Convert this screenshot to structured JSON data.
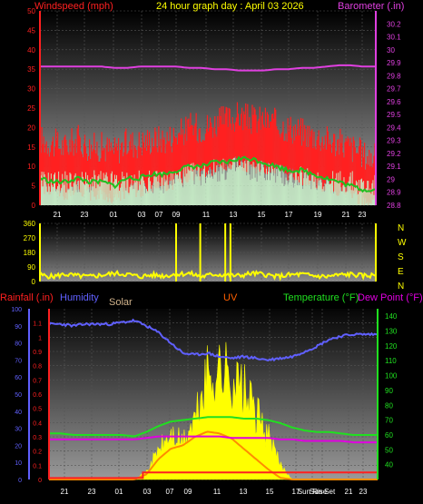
{
  "chart_data": [
    {
      "type": "line",
      "title": "24 hour graph day : April 03 2026",
      "left_axis_label": "Windspeed (mph)",
      "right_axis_label": "Barometer (.in)",
      "left_ylim": [
        0,
        50
      ],
      "left_ticks": [
        "0",
        "5",
        "10",
        "15",
        "20",
        "25",
        "30",
        "35",
        "40",
        "45",
        "50"
      ],
      "right_ylim": [
        28.8,
        30.3
      ],
      "right_ticks": [
        "28.8",
        "28.9",
        "29",
        "29.1",
        "29.2",
        "29.3",
        "29.4",
        "29.5",
        "29.6",
        "29.7",
        "29.8",
        "29.9",
        "30",
        "30.1",
        "30.2"
      ],
      "x_ticks": [
        "21",
        "23",
        "01",
        "03",
        "07",
        "09",
        "11",
        "13",
        "15",
        "17",
        "19",
        "21",
        "23"
      ],
      "series": [
        {
          "name": "Windspeed (mph)",
          "color": "#ff2020",
          "values": [
            12,
            11,
            10,
            12,
            10,
            10,
            9,
            11,
            11,
            12,
            12,
            13,
            15,
            15,
            16,
            17,
            18,
            17,
            17,
            16,
            15,
            14,
            13,
            12,
            11,
            10,
            8,
            7
          ]
        },
        {
          "name": "Barometer (.in)",
          "color": "#e040e0",
          "values": [
            29.87,
            29.87,
            29.87,
            29.87,
            29.87,
            29.87,
            29.86,
            29.86,
            29.87,
            29.87,
            29.87,
            29.87,
            29.86,
            29.86,
            29.85,
            29.85,
            29.84,
            29.84,
            29.84,
            29.85,
            29.85,
            29.86,
            29.86,
            29.87,
            29.88,
            29.88,
            29.87,
            29.87
          ]
        },
        {
          "color": "#20c020",
          "values": [
            7,
            6,
            6,
            7,
            6,
            6,
            5,
            7,
            7,
            8,
            8,
            9,
            10,
            10,
            11,
            11,
            12,
            12,
            11,
            10,
            9,
            9,
            8,
            7,
            6,
            5,
            4,
            4
          ]
        },
        {
          "color": "#c8f0c8",
          "values": [
            3,
            3,
            3,
            3,
            3,
            3,
            3,
            3,
            3,
            3,
            3,
            4,
            5,
            5,
            6,
            6,
            7,
            6,
            6,
            5,
            4,
            4,
            4,
            3,
            3,
            3,
            2,
            2
          ]
        }
      ]
    },
    {
      "type": "line",
      "ylim": [
        0,
        360
      ],
      "left_ticks": [
        "0",
        "90",
        "180",
        "270",
        "360"
      ],
      "right_ticks": [
        "N",
        "W",
        "S",
        "E",
        "N"
      ],
      "series": [
        {
          "color": "#ffff00",
          "values": [
            40,
            30,
            45,
            35,
            30,
            40,
            50,
            45,
            30,
            40,
            35,
            45,
            50,
            30,
            45,
            40,
            35,
            50,
            45,
            30,
            40,
            45,
            35,
            30,
            40,
            45,
            35,
            40
          ]
        }
      ],
      "spikes_hours": [
        9.0,
        11.8,
        14.7,
        15.3
      ]
    },
    {
      "type": "line",
      "labels": {
        "rainfall": "Rainfall (.in)",
        "humidity": "Humidity",
        "solar": "Solar",
        "uv": "UV",
        "temperature": "Temperature (°F)",
        "dew_point": "Dew Point (°F)"
      },
      "left_ylim": [
        0,
        100
      ],
      "left_ticks": [
        "0",
        "10",
        "20",
        "30",
        "40",
        "50",
        "60",
        "70",
        "80",
        "90",
        "100"
      ],
      "rain_ylim": [
        0,
        1.2
      ],
      "rain_ticks": [
        "0",
        "0.1",
        "0.2",
        "0.3",
        "0.4",
        "0.5",
        "0.6",
        "0.7",
        "0.8",
        "0.9",
        "1",
        "1.1"
      ],
      "right_ylim": [
        30,
        145
      ],
      "right_ticks": [
        "40",
        "50",
        "60",
        "70",
        "80",
        "90",
        "100",
        "110",
        "120",
        "130",
        "140"
      ],
      "x_ticks": [
        "21",
        "23",
        "01",
        "03",
        "07",
        "09",
        "11",
        "13",
        "15",
        "17",
        "Sun Rise",
        "Sun Set",
        "21",
        "23"
      ],
      "series": [
        {
          "name": "Humidity",
          "color": "#6060ff",
          "values": [
            91,
            91,
            90,
            91,
            91,
            91,
            92,
            93,
            90,
            86,
            80,
            74,
            73,
            74,
            72,
            71,
            72,
            71,
            70,
            71,
            72,
            75,
            78,
            82,
            84,
            85,
            85,
            85
          ]
        },
        {
          "name": "Temperature (°F)",
          "color": "#20e020",
          "values": [
            61,
            61,
            60,
            60,
            60,
            60,
            60,
            59,
            62,
            66,
            69,
            70,
            71,
            72,
            72,
            72,
            71,
            71,
            70,
            68,
            65,
            63,
            62,
            62,
            61,
            60,
            60,
            60
          ]
        },
        {
          "name": "Dew Point (°F)",
          "color": "#e000e0",
          "values": [
            57,
            57,
            57,
            57,
            57,
            57,
            57,
            57,
            58,
            59,
            59,
            59,
            59,
            59,
            59,
            58,
            58,
            58,
            58,
            57,
            57,
            56,
            56,
            56,
            56,
            55,
            55,
            55
          ]
        },
        {
          "name": "Solar",
          "color": "#ffff00",
          "values": [
            0,
            0,
            0,
            0,
            0,
            0,
            0,
            0,
            5,
            20,
            30,
            25,
            40,
            70,
            75,
            70,
            60,
            45,
            30,
            10,
            0,
            0,
            0,
            0,
            0,
            0,
            0,
            0
          ]
        },
        {
          "name": "UV",
          "color": "#ff8c00",
          "values": [
            0,
            0,
            0,
            0,
            0,
            0,
            0,
            0,
            3,
            12,
            18,
            20,
            25,
            28,
            27,
            24,
            18,
            12,
            6,
            1,
            0,
            0,
            0,
            0,
            0,
            0,
            0,
            0
          ]
        },
        {
          "name": "Rainfall (.in)",
          "color": "#ff2020",
          "values": [
            0.01,
            0.01,
            0.01,
            0.01,
            0.01,
            0.01,
            0.01,
            0.01,
            0.05,
            0.05,
            0.05,
            0.05,
            0.05,
            0.05,
            0.05,
            0.05,
            0.05,
            0.05,
            0.05,
            0.05,
            0.05,
            0.05,
            0.05,
            0.05,
            0.05,
            0.05,
            0.05,
            0.05
          ]
        }
      ]
    }
  ]
}
